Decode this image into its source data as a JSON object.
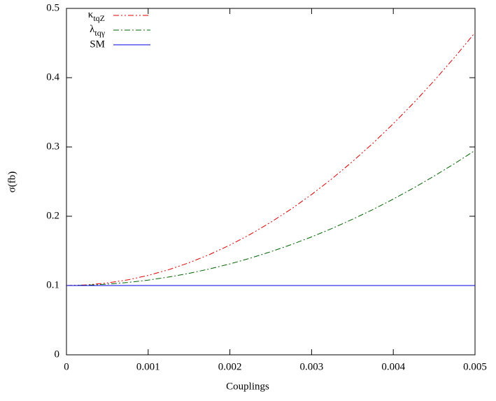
{
  "chart_data": {
    "type": "line",
    "x_label": "Couplings",
    "y_label": "σ(fb)",
    "x": [
      0,
      0.00025,
      0.0005,
      0.00075,
      0.001,
      0.00125,
      0.0015,
      0.00175,
      0.002,
      0.00225,
      0.0025,
      0.00275,
      0.003,
      0.00325,
      0.0035,
      0.00375,
      0.004,
      0.00425,
      0.0045,
      0.00475,
      0.005
    ],
    "series": [
      {
        "name": "κtqZ",
        "color": "#e00000",
        "dash": "8,3,2,3,2,3",
        "values": [
          0.1,
          0.1009,
          0.1037,
          0.1082,
          0.1146,
          0.1228,
          0.1329,
          0.1447,
          0.1584,
          0.1739,
          0.1913,
          0.2104,
          0.2314,
          0.2542,
          0.2789,
          0.3053,
          0.3336,
          0.3637,
          0.3957,
          0.4294,
          0.465
        ]
      },
      {
        "name": "λtqγ",
        "color": "#006400",
        "dash": "8,3,2,3",
        "values": [
          0.1,
          0.1005,
          0.102,
          0.1044,
          0.1078,
          0.1122,
          0.1176,
          0.1239,
          0.1312,
          0.1395,
          0.1488,
          0.159,
          0.1702,
          0.1824,
          0.1956,
          0.2097,
          0.2248,
          0.2409,
          0.258,
          0.276,
          0.295
        ]
      },
      {
        "name": "SM",
        "color": "#0000e0",
        "dash": "none",
        "values": [
          0.1,
          0.1,
          0.1,
          0.1,
          0.1,
          0.1,
          0.1,
          0.1,
          0.1,
          0.1,
          0.1,
          0.1,
          0.1,
          0.1,
          0.1,
          0.1,
          0.1,
          0.1,
          0.1,
          0.1,
          0.1
        ]
      }
    ],
    "xlim": [
      0,
      0.005
    ],
    "xticks": [
      0,
      0.001,
      0.002,
      0.003,
      0.004,
      0.005
    ],
    "ylim": [
      0,
      0.5
    ],
    "yticks": [
      0,
      0.1,
      0.2,
      0.3,
      0.4,
      0.5
    ],
    "grid": false,
    "legend": "top-left"
  }
}
